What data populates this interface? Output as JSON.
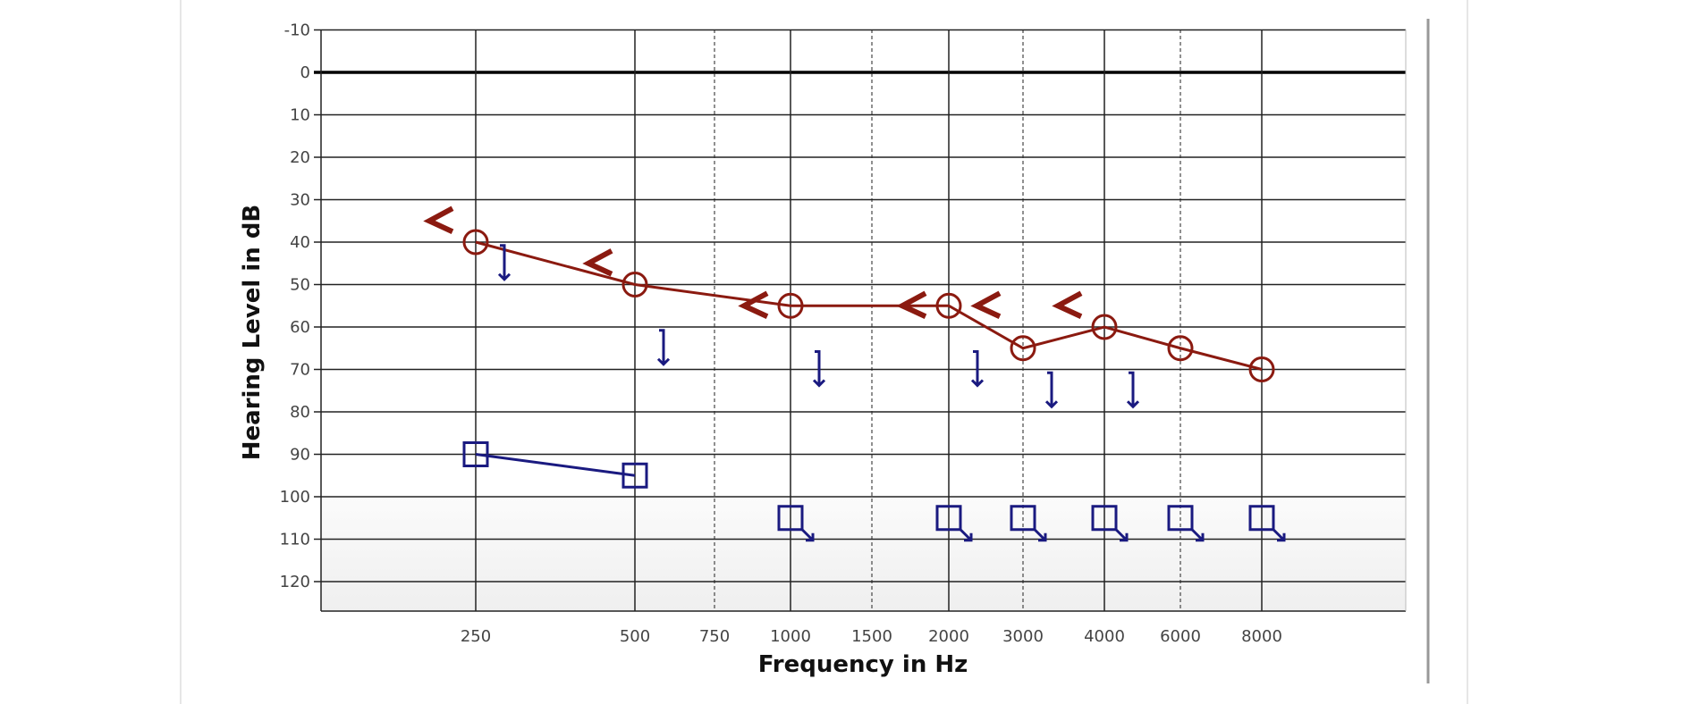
{
  "chart_data": {
    "type": "scatter",
    "title": "",
    "xlabel": "Frequency in Hz",
    "ylabel": "Hearing Level in dB",
    "x_ticks": [
      "250",
      "500",
      "750",
      "1000",
      "1500",
      "2000",
      "3000",
      "4000",
      "6000",
      "8000"
    ],
    "dashed_x_ticks": [
      "750",
      "1500",
      "3000",
      "6000"
    ],
    "y_ticks": [
      -10,
      0,
      10,
      20,
      30,
      40,
      50,
      60,
      70,
      80,
      90,
      100,
      110,
      120
    ],
    "ylim": [
      -10,
      125
    ],
    "y_inverted": true,
    "grid": true,
    "shaded_region_db": [
      100,
      125
    ],
    "series": [
      {
        "symbol": "circle",
        "color": "#8b1a10",
        "connected": true,
        "points": [
          {
            "x": "250",
            "y": 40
          },
          {
            "x": "500",
            "y": 50
          },
          {
            "x": "1000",
            "y": 55
          },
          {
            "x": "2000",
            "y": 55
          },
          {
            "x": "3000",
            "y": 65
          },
          {
            "x": "4000",
            "y": 60
          },
          {
            "x": "6000",
            "y": 65
          },
          {
            "x": "8000",
            "y": 70
          }
        ]
      },
      {
        "symbol": "square",
        "color": "#1a1a80",
        "connected": true,
        "points": [
          {
            "x": "250",
            "y": 90
          },
          {
            "x": "500",
            "y": 95
          }
        ]
      },
      {
        "symbol": "square-no-response",
        "color": "#1a1a80",
        "connected": false,
        "points": [
          {
            "x": "1000",
            "y": 105
          },
          {
            "x": "2000",
            "y": 105
          },
          {
            "x": "3000",
            "y": 105
          },
          {
            "x": "4000",
            "y": 105
          },
          {
            "x": "6000",
            "y": 105
          },
          {
            "x": "8000",
            "y": 105
          }
        ]
      },
      {
        "symbol": "less-than",
        "color": "#8b1a10",
        "connected": false,
        "points": [
          {
            "x": "250",
            "y": 35
          },
          {
            "x": "500",
            "y": 45
          },
          {
            "x": "1000",
            "y": 55
          },
          {
            "x": "2000",
            "y": 55
          },
          {
            "x": "3000",
            "y": 55
          },
          {
            "x": "4000",
            "y": 55
          }
        ]
      },
      {
        "symbol": "bracket-no-response",
        "color": "#1a1a80",
        "connected": false,
        "points": [
          {
            "x": "250",
            "y": 45
          },
          {
            "x": "500",
            "y": 65
          },
          {
            "x": "1000",
            "y": 70
          },
          {
            "x": "2000",
            "y": 70
          },
          {
            "x": "3000",
            "y": 75
          },
          {
            "x": "4000",
            "y": 75
          }
        ]
      }
    ]
  }
}
